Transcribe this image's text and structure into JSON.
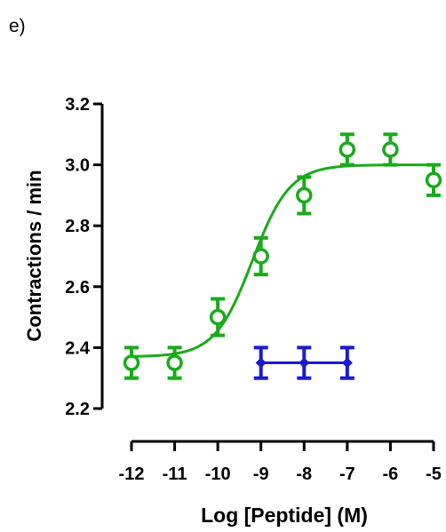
{
  "panel_label": "e)",
  "chart_data": {
    "type": "scatter",
    "xlabel": "Log [Peptide] (M)",
    "ylabel": "Contractions / min",
    "xlim": [
      -12,
      -5
    ],
    "ylim": [
      2.2,
      3.2
    ],
    "x_ticks": [
      "-12",
      "-11",
      "-10",
      "-9",
      "-8",
      "-7",
      "-6",
      "-5"
    ],
    "y_ticks": [
      "2.2",
      "2.4",
      "2.6",
      "2.8",
      "3.0",
      "3.2"
    ],
    "grid": false,
    "legend": "none",
    "series": [
      {
        "color": "#1aaa1a",
        "marker": "circle-open",
        "x": [
          -12,
          -11,
          -10,
          -9,
          -8,
          -7,
          -6,
          -5
        ],
        "y": [
          2.35,
          2.35,
          2.5,
          2.7,
          2.9,
          3.05,
          3.05,
          2.95
        ],
        "error": [
          0.05,
          0.05,
          0.06,
          0.06,
          0.06,
          0.05,
          0.05,
          0.05
        ],
        "fit": {
          "type": "sigmoid",
          "bottom": 2.37,
          "top": 3.0,
          "log_ec50": -9.2,
          "hill": 1.0
        }
      },
      {
        "color": "#1a1ad4",
        "marker": "diamond",
        "x": [
          -9,
          -8,
          -7
        ],
        "y": [
          2.35,
          2.35,
          2.35
        ],
        "error": [
          0.05,
          0.05,
          0.05
        ],
        "connect": true
      }
    ]
  }
}
